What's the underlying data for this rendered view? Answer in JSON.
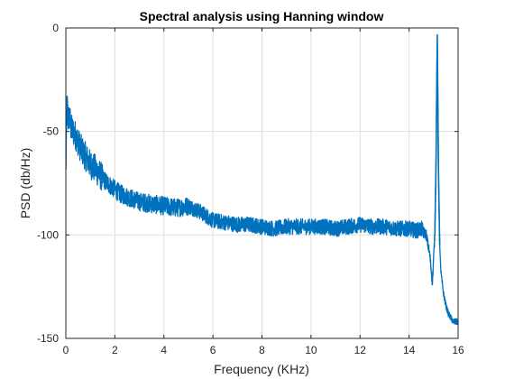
{
  "chart_data": {
    "type": "line",
    "title": "Spectral analysis using Hanning window",
    "xlabel": "Frequency (KHz)",
    "ylabel": "PSD (db/Hz)",
    "xlim": [
      0,
      16
    ],
    "ylim": [
      -150,
      0
    ],
    "xticks": [
      0,
      2,
      4,
      6,
      8,
      10,
      12,
      14,
      16
    ],
    "yticks": [
      0,
      -50,
      -100,
      -150
    ],
    "grid": true,
    "legend": "none",
    "line_color": "#0072BD",
    "series": [
      {
        "x": [
          0,
          0.05,
          0.1,
          0.15,
          0.2,
          0.3,
          0.4,
          0.5,
          0.6,
          0.7,
          0.8,
          0.9,
          1.0,
          1.2,
          1.4,
          1.6,
          1.8,
          2.0,
          2.2,
          2.4,
          2.6,
          2.8,
          3.0,
          3.5,
          4.0,
          4.5,
          5.0,
          5.5,
          6.0,
          6.5,
          7.0,
          7.5,
          8.0,
          8.5,
          9.0,
          9.5,
          10.0,
          10.5,
          11.0,
          11.5,
          12.0,
          12.5,
          13.0,
          13.5,
          14.0,
          14.3,
          14.5,
          14.7,
          14.85,
          14.95,
          15.05,
          15.1,
          15.15,
          15.2,
          15.25,
          15.3,
          15.4,
          15.5,
          15.6,
          15.7,
          15.8,
          15.9,
          16.0
        ],
        "y": [
          -70,
          -36,
          -45,
          -42,
          -48,
          -50,
          -52,
          -55,
          -58,
          -60,
          -62,
          -64,
          -66,
          -68,
          -71,
          -74,
          -76,
          -78,
          -80,
          -81,
          -82,
          -83,
          -84,
          -85,
          -86,
          -87,
          -86,
          -89,
          -93,
          -94,
          -95,
          -95,
          -96,
          -97,
          -96,
          -96,
          -96,
          -96,
          -97,
          -96,
          -95,
          -96,
          -96,
          -97,
          -97,
          -98,
          -97,
          -100,
          -110,
          -123,
          -100,
          -65,
          -3,
          -70,
          -105,
          -118,
          -128,
          -134,
          -138,
          -140,
          -142,
          -142,
          -142
        ],
        "values_note": ""
      }
    ]
  }
}
